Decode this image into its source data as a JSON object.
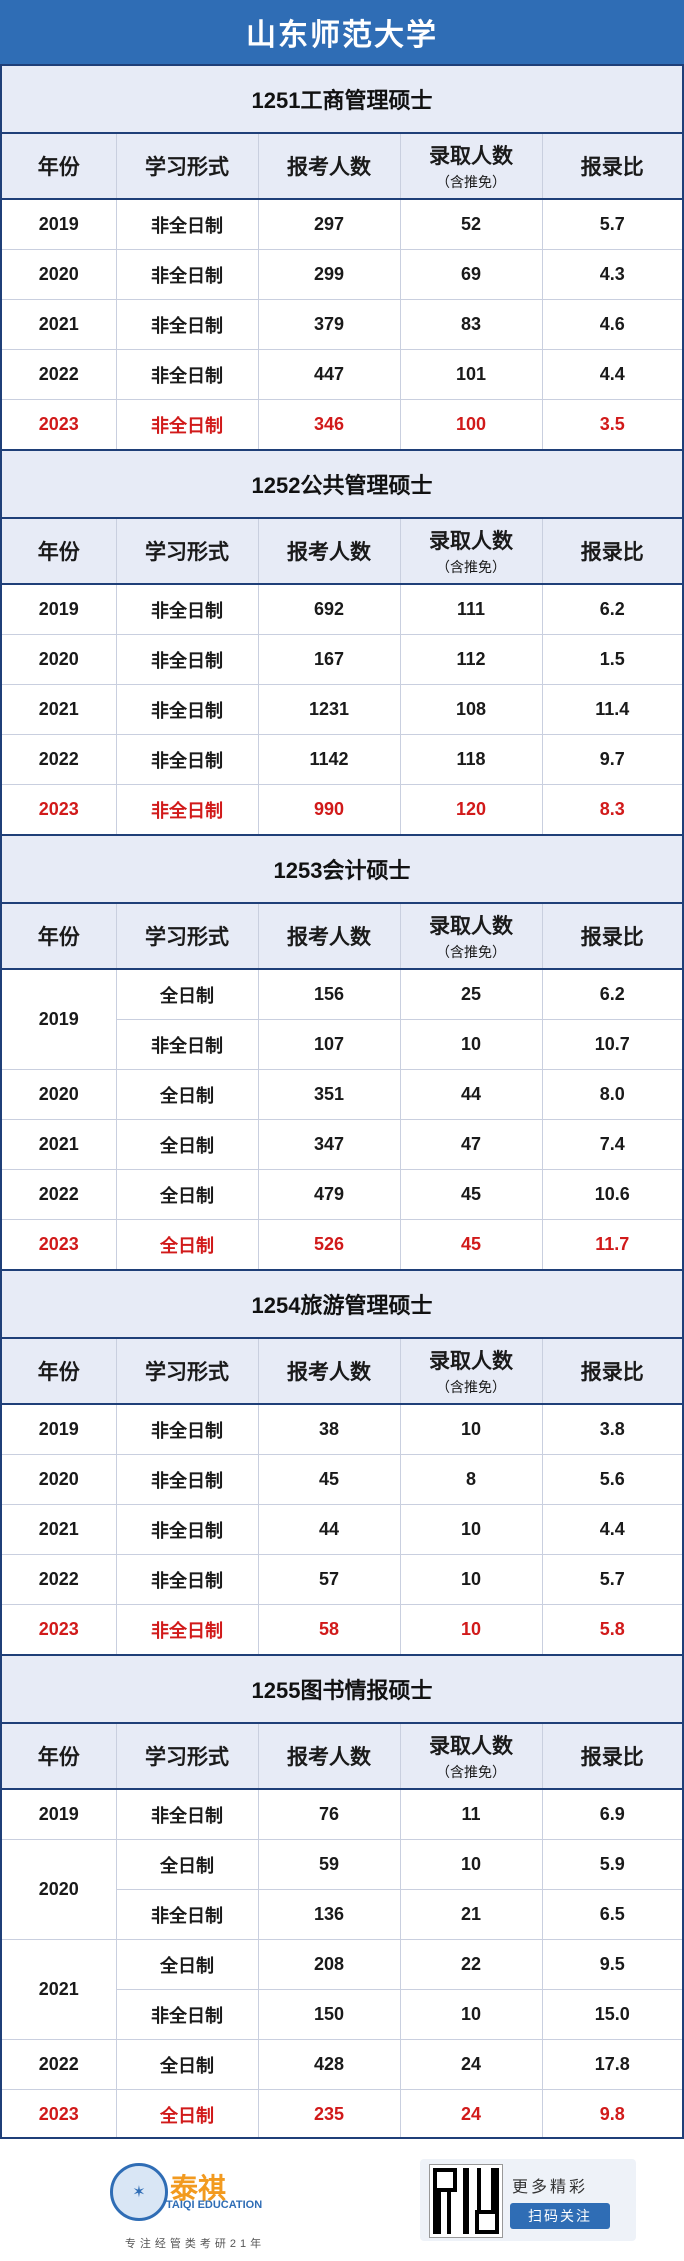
{
  "header": {
    "title": "山东师范大学"
  },
  "columns": {
    "year": "年份",
    "mode": "学习形式",
    "applicants": "报考人数",
    "admitted": "录取人数",
    "admitted_note": "（含推免）",
    "ratio": "报录比"
  },
  "programs": [
    {
      "title": "1251工商管理硕士",
      "rows": [
        {
          "year": "2019",
          "mode": "非全日制",
          "applicants": "297",
          "admitted": "52",
          "ratio": "5.7"
        },
        {
          "year": "2020",
          "mode": "非全日制",
          "applicants": "299",
          "admitted": "69",
          "ratio": "4.3"
        },
        {
          "year": "2021",
          "mode": "非全日制",
          "applicants": "379",
          "admitted": "83",
          "ratio": "4.6"
        },
        {
          "year": "2022",
          "mode": "非全日制",
          "applicants": "447",
          "admitted": "101",
          "ratio": "4.4"
        },
        {
          "year": "2023",
          "mode": "非全日制",
          "applicants": "346",
          "admitted": "100",
          "ratio": "3.5"
        }
      ]
    },
    {
      "title": "1252公共管理硕士",
      "rows": [
        {
          "year": "2019",
          "mode": "非全日制",
          "applicants": "692",
          "admitted": "111",
          "ratio": "6.2"
        },
        {
          "year": "2020",
          "mode": "非全日制",
          "applicants": "167",
          "admitted": "112",
          "ratio": "1.5"
        },
        {
          "year": "2021",
          "mode": "非全日制",
          "applicants": "1231",
          "admitted": "108",
          "ratio": "11.4"
        },
        {
          "year": "2022",
          "mode": "非全日制",
          "applicants": "1142",
          "admitted": "118",
          "ratio": "9.7"
        },
        {
          "year": "2023",
          "mode": "非全日制",
          "applicants": "990",
          "admitted": "120",
          "ratio": "8.3"
        }
      ]
    },
    {
      "title": "1253会计硕士",
      "rows": [
        {
          "year": "2019",
          "mode": "全日制",
          "applicants": "156",
          "admitted": "25",
          "ratio": "6.2"
        },
        {
          "year": "",
          "mode": "非全日制",
          "applicants": "107",
          "admitted": "10",
          "ratio": "10.7"
        },
        {
          "year": "2020",
          "mode": "全日制",
          "applicants": "351",
          "admitted": "44",
          "ratio": "8.0"
        },
        {
          "year": "2021",
          "mode": "全日制",
          "applicants": "347",
          "admitted": "47",
          "ratio": "7.4"
        },
        {
          "year": "2022",
          "mode": "全日制",
          "applicants": "479",
          "admitted": "45",
          "ratio": "10.6"
        },
        {
          "year": "2023",
          "mode": "全日制",
          "applicants": "526",
          "admitted": "45",
          "ratio": "11.7"
        }
      ]
    },
    {
      "title": "1254旅游管理硕士",
      "rows": [
        {
          "year": "2019",
          "mode": "非全日制",
          "applicants": "38",
          "admitted": "10",
          "ratio": "3.8"
        },
        {
          "year": "2020",
          "mode": "非全日制",
          "applicants": "45",
          "admitted": "8",
          "ratio": "5.6"
        },
        {
          "year": "2021",
          "mode": "非全日制",
          "applicants": "44",
          "admitted": "10",
          "ratio": "4.4"
        },
        {
          "year": "2022",
          "mode": "非全日制",
          "applicants": "57",
          "admitted": "10",
          "ratio": "5.7"
        },
        {
          "year": "2023",
          "mode": "非全日制",
          "applicants": "58",
          "admitted": "10",
          "ratio": "5.8"
        }
      ]
    },
    {
      "title": "1255图书情报硕士",
      "rows": [
        {
          "year": "2019",
          "mode": "非全日制",
          "applicants": "76",
          "admitted": "11",
          "ratio": "6.9"
        },
        {
          "year": "2020",
          "mode": "全日制",
          "applicants": "59",
          "admitted": "10",
          "ratio": "5.9"
        },
        {
          "year": "",
          "mode": "非全日制",
          "applicants": "136",
          "admitted": "21",
          "ratio": "6.5"
        },
        {
          "year": "2021",
          "mode": "全日制",
          "applicants": "208",
          "admitted": "22",
          "ratio": "9.5"
        },
        {
          "year": "",
          "mode": "非全日制",
          "applicants": "150",
          "admitted": "10",
          "ratio": "15.0"
        },
        {
          "year": "2022",
          "mode": "全日制",
          "applicants": "428",
          "admitted": "24",
          "ratio": "17.8"
        },
        {
          "year": "2023",
          "mode": "全日制",
          "applicants": "235",
          "admitted": "24",
          "ratio": "9.8"
        }
      ]
    }
  ],
  "footer": {
    "logo_text": "泰祺",
    "logo_sub": "TAIQI EDUCATION",
    "slogan": "专注经管类考研21年",
    "more": "更多精彩",
    "scan": "扫码关注",
    "qr_icon": "qr-code-icon",
    "accent_color": "#2f6db5",
    "highlight_color": "#d11a1a"
  }
}
